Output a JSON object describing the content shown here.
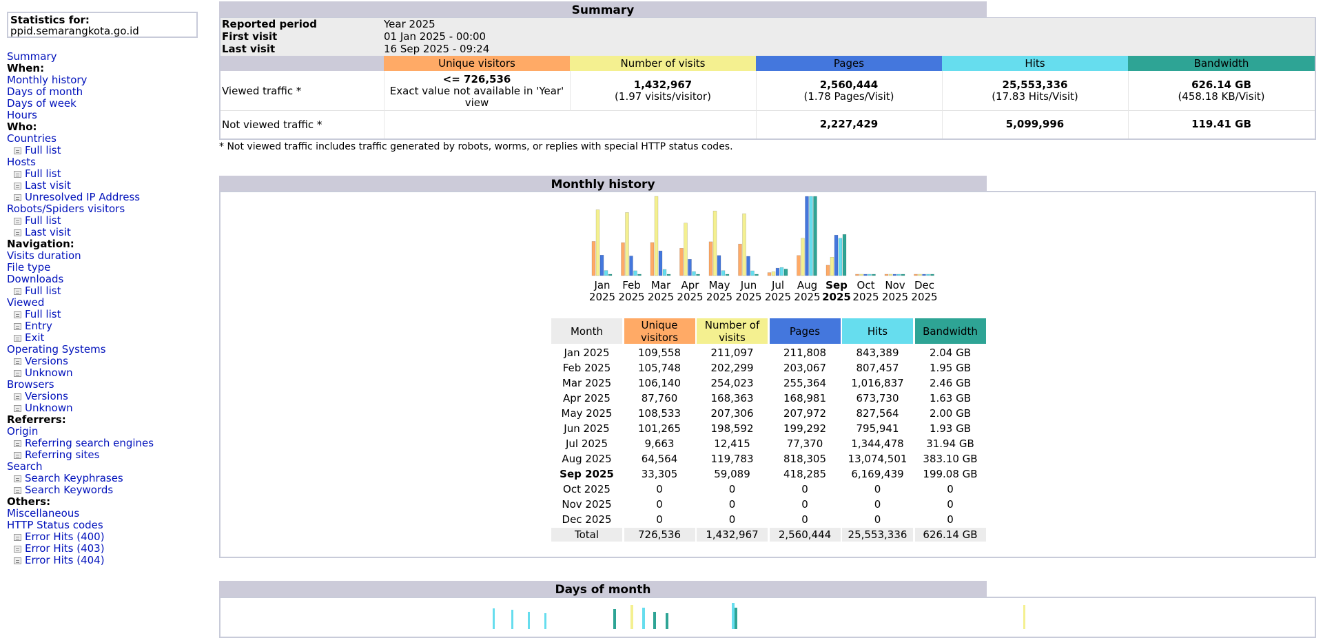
{
  "sidebar": {
    "stats_header": "Statistics for:",
    "domain": "ppid.semarangkota.go.id",
    "items": [
      {
        "label": "Summary",
        "type": "link"
      },
      {
        "label": "When:",
        "type": "header"
      },
      {
        "label": "Monthly history",
        "type": "link"
      },
      {
        "label": "Days of month",
        "type": "link"
      },
      {
        "label": "Days of week",
        "type": "link"
      },
      {
        "label": "Hours",
        "type": "link"
      },
      {
        "label": "Who:",
        "type": "header"
      },
      {
        "label": "Countries",
        "type": "link"
      },
      {
        "label": "Full list",
        "type": "sub"
      },
      {
        "label": "Hosts",
        "type": "link"
      },
      {
        "label": "Full list",
        "type": "sub"
      },
      {
        "label": "Last visit",
        "type": "sub"
      },
      {
        "label": "Unresolved IP Address",
        "type": "sub"
      },
      {
        "label": "Robots/Spiders visitors",
        "type": "link"
      },
      {
        "label": "Full list",
        "type": "sub"
      },
      {
        "label": "Last visit",
        "type": "sub"
      },
      {
        "label": "Navigation:",
        "type": "header"
      },
      {
        "label": "Visits duration",
        "type": "link"
      },
      {
        "label": "File type",
        "type": "link"
      },
      {
        "label": "Downloads",
        "type": "link"
      },
      {
        "label": "Full list",
        "type": "sub"
      },
      {
        "label": "Viewed",
        "type": "link"
      },
      {
        "label": "Full list",
        "type": "sub"
      },
      {
        "label": "Entry",
        "type": "sub"
      },
      {
        "label": "Exit",
        "type": "sub"
      },
      {
        "label": "Operating Systems",
        "type": "link"
      },
      {
        "label": "Versions",
        "type": "sub"
      },
      {
        "label": "Unknown",
        "type": "sub"
      },
      {
        "label": "Browsers",
        "type": "link"
      },
      {
        "label": "Versions",
        "type": "sub"
      },
      {
        "label": "Unknown",
        "type": "sub"
      },
      {
        "label": "Referrers:",
        "type": "header"
      },
      {
        "label": "Origin",
        "type": "link"
      },
      {
        "label": "Referring search engines",
        "type": "sub"
      },
      {
        "label": "Referring sites",
        "type": "sub"
      },
      {
        "label": "Search",
        "type": "link"
      },
      {
        "label": "Search Keyphrases",
        "type": "sub"
      },
      {
        "label": "Search Keywords",
        "type": "sub"
      },
      {
        "label": "Others:",
        "type": "header"
      },
      {
        "label": "Miscellaneous",
        "type": "link"
      },
      {
        "label": "HTTP Status codes",
        "type": "link"
      },
      {
        "label": "Error Hits (400)",
        "type": "sub"
      },
      {
        "label": "Error Hits (403)",
        "type": "sub"
      },
      {
        "label": "Error Hits (404)",
        "type": "sub"
      }
    ]
  },
  "summary": {
    "title": "Summary",
    "reported_period_label": "Reported period",
    "reported_period": "Year 2025",
    "first_visit_label": "First visit",
    "first_visit": "01 Jan 2025 - 00:00",
    "last_visit_label": "Last visit",
    "last_visit": "16 Sep 2025 - 09:24",
    "col_unique": "Unique visitors",
    "col_visits": "Number of visits",
    "col_pages": "Pages",
    "col_hits": "Hits",
    "col_bandwidth": "Bandwidth",
    "viewed_label": "Viewed traffic *",
    "viewed_unique": "<= 726,536",
    "viewed_unique_note": "Exact value not available in 'Year' view",
    "viewed_visits": "1,432,967",
    "viewed_visits_sub": "(1.97 visits/visitor)",
    "viewed_pages": "2,560,444",
    "viewed_pages_sub": "(1.78 Pages/Visit)",
    "viewed_hits": "25,553,336",
    "viewed_hits_sub": "(17.83 Hits/Visit)",
    "viewed_bw": "626.14 GB",
    "viewed_bw_sub": "(458.18 KB/Visit)",
    "notviewed_label": "Not viewed traffic *",
    "notviewed_pages": "2,227,429",
    "notviewed_hits": "5,099,996",
    "notviewed_bw": "119.41 GB",
    "footnote": "* Not viewed traffic includes traffic generated by robots, worms, or replies with special HTTP status codes."
  },
  "colors": {
    "unique": "#ffaa66",
    "visits": "#f4f090",
    "pages": "#4477dd",
    "hits": "#66ddee",
    "bandwidth": "#2ea495",
    "title_bg": "#cccbd9",
    "link": "#0011bb"
  },
  "monthly": {
    "title": "Monthly history",
    "headers": {
      "month": "Month",
      "unique": "Unique visitors",
      "visits": "Number of visits",
      "pages": "Pages",
      "hits": "Hits",
      "bandwidth": "Bandwidth"
    },
    "rows": [
      {
        "month": "Jan 2025",
        "unique": "109,558",
        "visits": "211,097",
        "pages": "211,808",
        "hits": "843,389",
        "bw": "2.04 GB"
      },
      {
        "month": "Feb 2025",
        "unique": "105,748",
        "visits": "202,299",
        "pages": "203,067",
        "hits": "807,457",
        "bw": "1.95 GB"
      },
      {
        "month": "Mar 2025",
        "unique": "106,140",
        "visits": "254,023",
        "pages": "255,364",
        "hits": "1,016,837",
        "bw": "2.46 GB"
      },
      {
        "month": "Apr 2025",
        "unique": "87,760",
        "visits": "168,363",
        "pages": "168,981",
        "hits": "673,730",
        "bw": "1.63 GB"
      },
      {
        "month": "May 2025",
        "unique": "108,533",
        "visits": "207,306",
        "pages": "207,972",
        "hits": "827,564",
        "bw": "2.00 GB"
      },
      {
        "month": "Jun 2025",
        "unique": "101,265",
        "visits": "198,592",
        "pages": "199,292",
        "hits": "795,941",
        "bw": "1.93 GB"
      },
      {
        "month": "Jul 2025",
        "unique": "9,663",
        "visits": "12,415",
        "pages": "77,370",
        "hits": "1,344,478",
        "bw": "31.94 GB"
      },
      {
        "month": "Aug 2025",
        "unique": "64,564",
        "visits": "119,783",
        "pages": "818,305",
        "hits": "13,074,501",
        "bw": "383.10 GB"
      },
      {
        "month": "Sep 2025",
        "unique": "33,305",
        "visits": "59,089",
        "pages": "418,285",
        "hits": "6,169,439",
        "bw": "199.08 GB",
        "bold": true
      },
      {
        "month": "Oct 2025",
        "unique": "0",
        "visits": "0",
        "pages": "0",
        "hits": "0",
        "bw": "0"
      },
      {
        "month": "Nov 2025",
        "unique": "0",
        "visits": "0",
        "pages": "0",
        "hits": "0",
        "bw": "0"
      },
      {
        "month": "Dec 2025",
        "unique": "0",
        "visits": "0",
        "pages": "0",
        "hits": "0",
        "bw": "0"
      }
    ],
    "total": {
      "month": "Total",
      "unique": "726,536",
      "visits": "1,432,967",
      "pages": "2,560,444",
      "hits": "25,553,336",
      "bw": "626.14 GB"
    }
  },
  "chart_data": {
    "type": "bar",
    "categories": [
      "Jan 2025",
      "Feb 2025",
      "Mar 2025",
      "Apr 2025",
      "May 2025",
      "Jun 2025",
      "Jul 2025",
      "Aug 2025",
      "Sep 2025",
      "Oct 2025",
      "Nov 2025",
      "Dec 2025"
    ],
    "series": [
      {
        "name": "Unique visitors",
        "values": [
          109558,
          105748,
          106140,
          87760,
          108533,
          101265,
          9663,
          64564,
          33305,
          0,
          0,
          0
        ]
      },
      {
        "name": "Number of visits",
        "values": [
          211097,
          202299,
          254023,
          168363,
          207306,
          198592,
          12415,
          119783,
          59089,
          0,
          0,
          0
        ]
      },
      {
        "name": "Pages",
        "values": [
          211808,
          203067,
          255364,
          168981,
          207972,
          199292,
          77370,
          818305,
          418285,
          0,
          0,
          0
        ]
      },
      {
        "name": "Hits",
        "values": [
          843389,
          807457,
          1016837,
          673730,
          827564,
          795941,
          1344478,
          13074501,
          6169439,
          0,
          0,
          0
        ]
      },
      {
        "name": "Bandwidth",
        "values": [
          2.04,
          1.95,
          2.46,
          1.63,
          2.0,
          1.93,
          31.94,
          383.1,
          199.08,
          0,
          0,
          0
        ]
      }
    ],
    "month_labels": [
      "Jan",
      "Feb",
      "Mar",
      "Apr",
      "May",
      "Jun",
      "Jul",
      "Aug",
      "Sep",
      "Oct",
      "Nov",
      "Dec"
    ],
    "year_label": "2025",
    "highlight": "Sep 2025"
  },
  "days_of_month": {
    "title": "Days of month"
  }
}
